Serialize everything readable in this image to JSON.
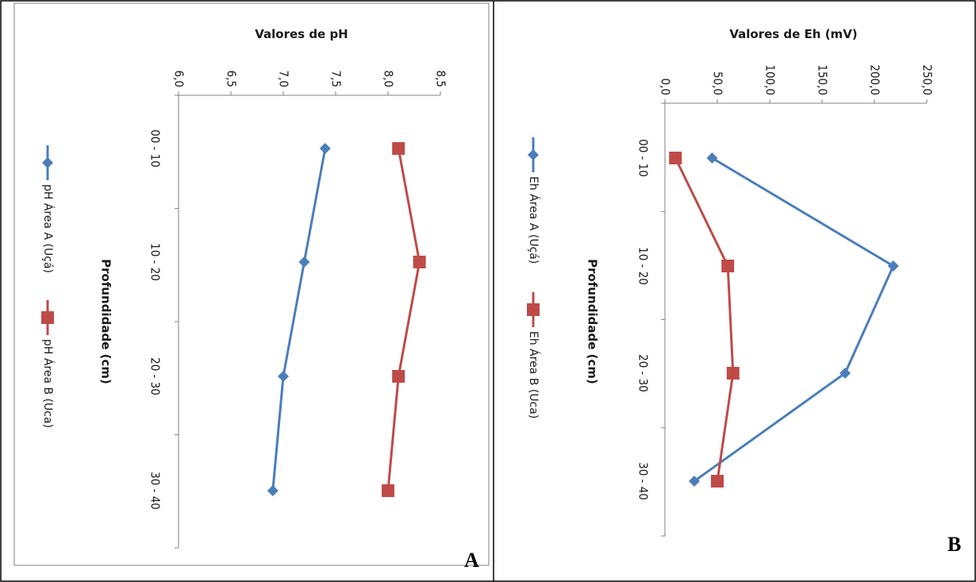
{
  "colors": {
    "series_a": "#4a7ebb",
    "series_b": "#be4b48",
    "axis": "#808080",
    "border": "#000000"
  },
  "panels": [
    {
      "letter": "A"
    },
    {
      "letter": "B"
    }
  ],
  "chart_data": [
    {
      "type": "line",
      "panel": "A",
      "orientation": "rotated 90 degrees clockwise (depth increases downward, value increases to the left)",
      "xlabel": "Profundidade (cm)",
      "ylabel": "Valores de pH",
      "categories": [
        "00 - 10",
        "10 - 20",
        "20 - 30",
        "30 - 40"
      ],
      "ylim": [
        6.0,
        8.5
      ],
      "yticks": [
        "6,0",
        "6,5",
        "7,0",
        "7,5",
        "8,0",
        "8,5"
      ],
      "grid": false,
      "legend_position": "left",
      "series": [
        {
          "name": "pH Área A (Uçá)",
          "marker": "diamond",
          "color": "#4a7ebb",
          "values": [
            7.4,
            7.2,
            7.0,
            6.9
          ]
        },
        {
          "name": "pH Área B (Uca)",
          "marker": "square",
          "color": "#be4b48",
          "values": [
            8.1,
            8.3,
            8.1,
            8.0
          ]
        }
      ]
    },
    {
      "type": "line",
      "panel": "B",
      "orientation": "rotated 90 degrees clockwise (depth increases downward, value increases to the left)",
      "xlabel": "Profundidade (cm)",
      "ylabel": "Valores de  Eh (mV)",
      "categories": [
        "00 - 10",
        "10 - 20",
        "20 - 30",
        "30 - 40"
      ],
      "ylim": [
        0,
        250
      ],
      "yticks": [
        "0,0",
        "50,0",
        "100,0",
        "150,0",
        "200,0",
        "250,0"
      ],
      "grid": false,
      "legend_position": "left",
      "series": [
        {
          "name": "Eh Área A (Uçá)",
          "marker": "diamond",
          "color": "#4a7ebb",
          "values": [
            45,
            218,
            172,
            28
          ]
        },
        {
          "name": "Eh Área B (Uca)",
          "marker": "square",
          "color": "#be4b48",
          "values": [
            10,
            60,
            65,
            50
          ]
        }
      ]
    }
  ]
}
